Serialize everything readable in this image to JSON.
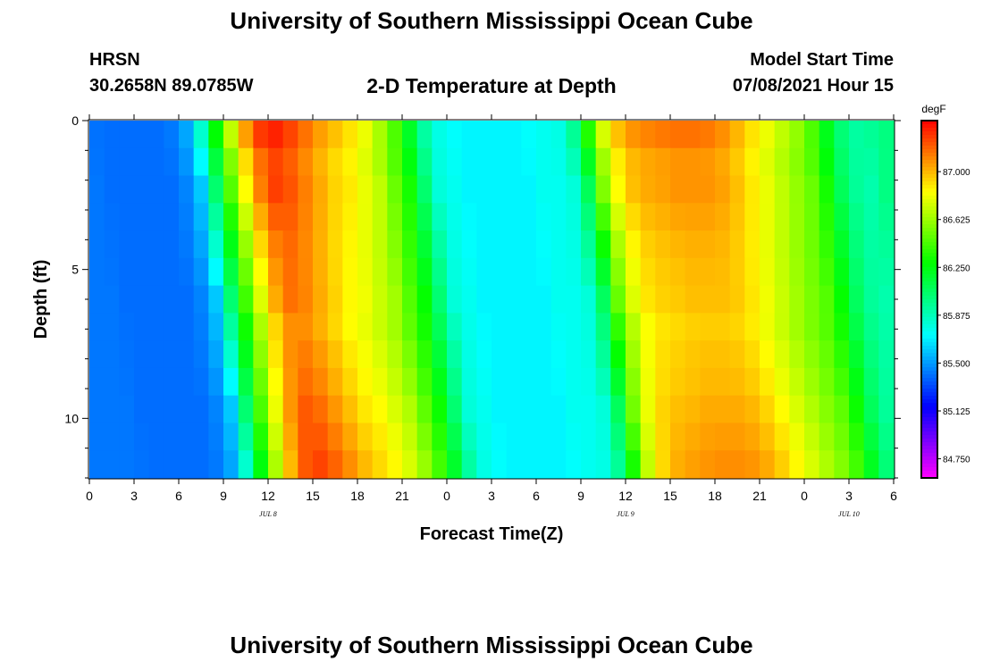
{
  "header": {
    "title": "University of Southern Mississippi Ocean Cube",
    "station": "HRSN",
    "coords": "30.2658N  89.0785W",
    "subtitle": "2-D Temperature at Depth",
    "model_start_label": "Model Start Time",
    "model_start_value": "07/08/2021 Hour 15"
  },
  "footer": {
    "title": "University of Southern Mississippi Ocean Cube"
  },
  "chart_data": {
    "type": "heatmap",
    "title": "2-D Temperature at Depth",
    "xlabel": "Forecast Time(Z)",
    "ylabel": "Depth (ft)",
    "x_range_hours": [
      0,
      54
    ],
    "x_tick_labels": [
      "0",
      "3",
      "6",
      "9",
      "12",
      "15",
      "18",
      "21",
      "0",
      "3",
      "6",
      "9",
      "12",
      "15",
      "18",
      "21",
      "0",
      "3",
      "6"
    ],
    "date_labels": [
      {
        "label": "JUL 8",
        "hour": 12
      },
      {
        "label": "JUL 9",
        "hour": 36
      },
      {
        "label": "JUL 10",
        "hour": 51
      }
    ],
    "y_range_ft": [
      0,
      12
    ],
    "y_tick_labels": [
      "0",
      "5",
      "10"
    ],
    "y_tick_values": [
      0,
      5,
      10
    ],
    "colorbar": {
      "unit": "degF",
      "min": 84.6,
      "max": 87.4,
      "tick_values": [
        84.75,
        85.125,
        85.5,
        85.875,
        86.25,
        86.625,
        87.0
      ],
      "tick_labels": [
        "84.750",
        "85.125",
        "85.500",
        "85.875",
        "86.250",
        "86.625",
        "87.000"
      ]
    },
    "columns_hours": [
      0,
      1,
      2,
      3,
      4,
      5,
      6,
      7,
      8,
      9,
      10,
      11,
      12,
      13,
      14,
      15,
      16,
      17,
      18,
      19,
      20,
      21,
      22,
      23,
      24,
      25,
      26,
      27,
      28,
      29,
      30,
      31,
      32,
      33,
      34,
      35,
      36,
      37,
      38,
      39,
      40,
      41,
      42,
      43,
      44,
      45,
      46,
      47,
      48,
      49,
      50,
      51,
      52,
      53
    ],
    "surface_temps_degF": [
      85.42,
      85.4,
      85.4,
      85.4,
      85.4,
      85.4,
      85.45,
      85.6,
      86.05,
      86.5,
      86.9,
      87.2,
      87.35,
      87.3,
      87.2,
      87.1,
      87.0,
      86.95,
      86.85,
      86.75,
      86.55,
      86.35,
      86.05,
      85.8,
      85.75,
      85.7,
      85.7,
      85.7,
      85.7,
      85.7,
      85.75,
      85.75,
      85.8,
      86.1,
      86.6,
      86.9,
      87.05,
      87.1,
      87.12,
      87.15,
      87.15,
      87.15,
      87.12,
      87.05,
      86.95,
      86.85,
      86.75,
      86.65,
      86.55,
      86.35,
      86.1,
      85.95,
      85.9,
      86.0
    ],
    "depth_offsets_degF": [
      0,
      0.12,
      0.12,
      0.17,
      0.22,
      0.25,
      0.27,
      0.32,
      0.28,
      0.25,
      0.2,
      0.15,
      0.1
    ],
    "bottom_lag_hours": 3.0
  }
}
